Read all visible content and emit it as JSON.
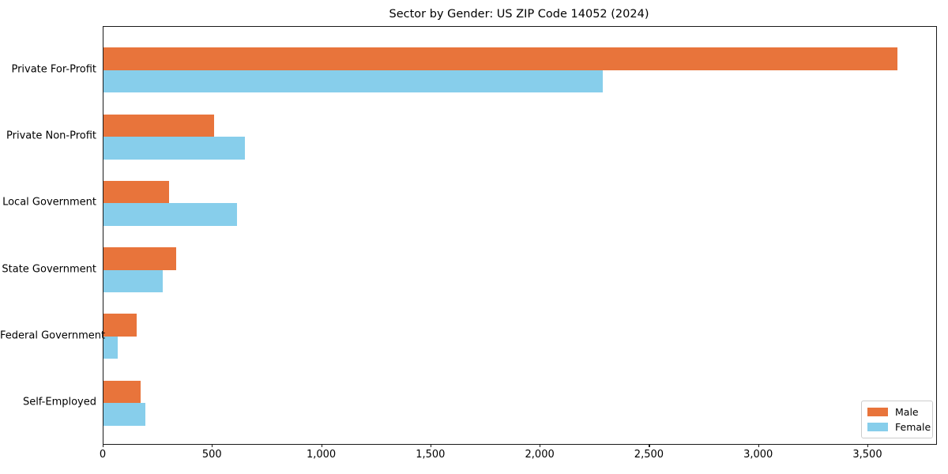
{
  "chart_data": {
    "type": "bar",
    "orientation": "horizontal",
    "title": "Sector by Gender: US ZIP Code 14052 (2024)",
    "categories": [
      "Private For-Profit",
      "Private Non-Profit",
      "Local Government",
      "State Government",
      "Federal Government",
      "Self-Employed"
    ],
    "series": [
      {
        "name": "Male",
        "color": "#e8743b",
        "values": [
          3634,
          506,
          301,
          331,
          151,
          169
        ]
      },
      {
        "name": "Female",
        "color": "#87ceeb",
        "values": [
          2284,
          648,
          612,
          271,
          66,
          193
        ]
      }
    ],
    "xlabel": "",
    "ylabel": "",
    "xlim": [
      0,
      3811
    ],
    "xticks": [
      0,
      500,
      1000,
      1500,
      2000,
      2500,
      3000,
      3500
    ],
    "xtick_labels": [
      "0",
      "500",
      "1,000",
      "1,500",
      "2,000",
      "2,500",
      "3,000",
      "3,500"
    ],
    "grid": false,
    "legend": {
      "position": "lower right"
    },
    "colors": {
      "male": "#e8743b",
      "female": "#87ceeb",
      "frame": "#1a1a1a",
      "background": "#ffffff"
    }
  }
}
